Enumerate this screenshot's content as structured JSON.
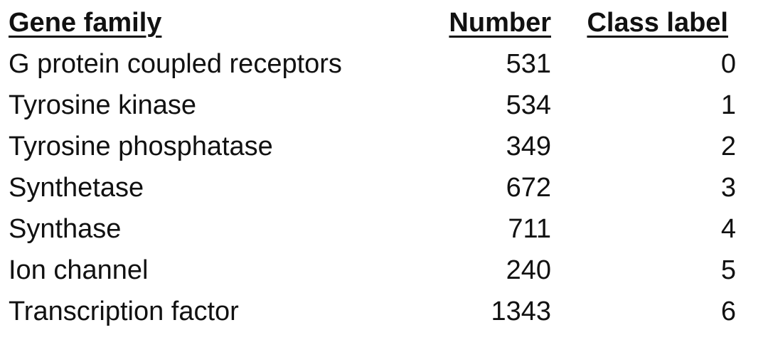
{
  "table": {
    "headers": {
      "gene_family": "Gene family",
      "number": "Number",
      "class_label": "Class label"
    },
    "rows": [
      {
        "gene_family": "G protein coupled receptors",
        "number": "531",
        "class_label": "0"
      },
      {
        "gene_family": "Tyrosine kinase",
        "number": "534",
        "class_label": "1"
      },
      {
        "gene_family": "Tyrosine phosphatase",
        "number": "349",
        "class_label": "2"
      },
      {
        "gene_family": "Synthetase",
        "number": "672",
        "class_label": "3"
      },
      {
        "gene_family": "Synthase",
        "number": "711",
        "class_label": "4"
      },
      {
        "gene_family": "Ion channel",
        "number": "240",
        "class_label": "5"
      },
      {
        "gene_family": "Transcription factor",
        "number": "1343",
        "class_label": "6"
      }
    ]
  }
}
